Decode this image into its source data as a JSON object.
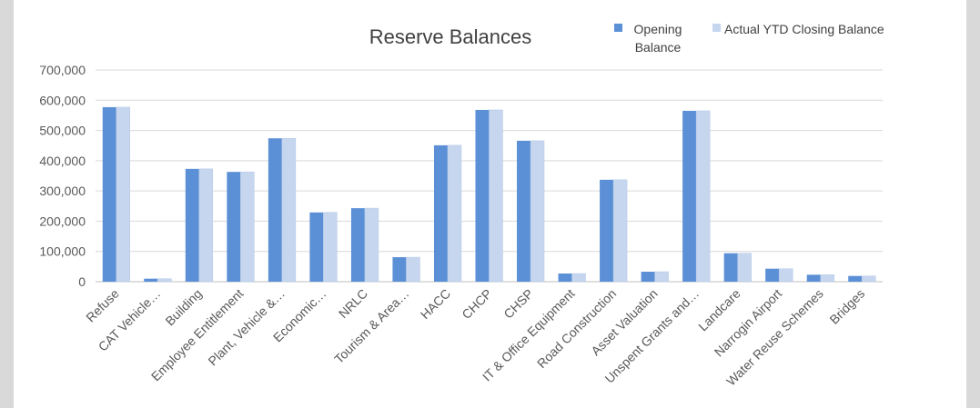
{
  "chart_data": {
    "type": "bar",
    "title": "Reserve Balances",
    "categories": [
      "Refuse",
      "CAT Vehicle…",
      "Building",
      "Employee Entitlement",
      "Plant, Vehicle &…",
      "Economic…",
      "NRLC",
      "Tourism & Area…",
      "HACC",
      "CHCP",
      "CHSP",
      "IT & Office Equipment",
      "Road Construction",
      "Asset Valuation",
      "Unspent Grants and…",
      "Landcare",
      "Narrogin Airport",
      "Water Reuse Schemes",
      "Bridges"
    ],
    "series": [
      {
        "name": "Opening Balance",
        "color": "#5b8fd6",
        "values": [
          577000,
          10000,
          373000,
          363000,
          474000,
          229000,
          243000,
          81000,
          451000,
          568000,
          466000,
          27000,
          337000,
          33000,
          565000,
          94000,
          43000,
          23000,
          19000
        ]
      },
      {
        "name": "Actual YTD Closing Balance",
        "color": "#c5d6ee",
        "values": [
          577000,
          10000,
          373000,
          363000,
          474000,
          229000,
          243000,
          81000,
          451000,
          568000,
          466000,
          27000,
          337000,
          33000,
          565000,
          94000,
          43000,
          23000,
          19000
        ]
      }
    ],
    "xlabel": "",
    "ylabel": "",
    "ylim": [
      0,
      700000
    ],
    "yticks": [
      0,
      100000,
      200000,
      300000,
      400000,
      500000,
      600000,
      700000
    ],
    "ytick_labels": [
      "0",
      "100,000",
      "200,000",
      "300,000",
      "400,000",
      "500,000",
      "600,000",
      "700,000"
    ],
    "grid": true,
    "legend_position": "top-right"
  }
}
